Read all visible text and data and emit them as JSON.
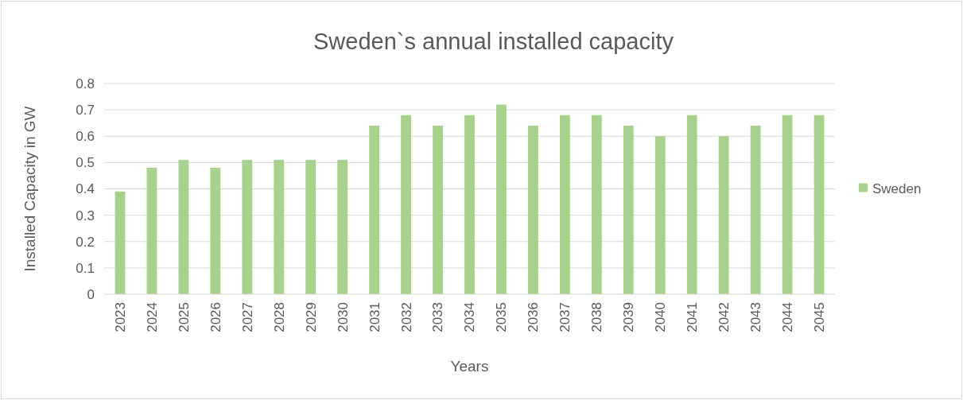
{
  "chart_data": {
    "type": "bar",
    "title": "Sweden`s annual installed capacity",
    "xlabel": "Years",
    "ylabel": "Installed Capacity in GW",
    "categories": [
      "2023",
      "2024",
      "2025",
      "2026",
      "2027",
      "2028",
      "2029",
      "2030",
      "2031",
      "2032",
      "2033",
      "2034",
      "2035",
      "2036",
      "2037",
      "2038",
      "2039",
      "2040",
      "2041",
      "2042",
      "2043",
      "2044",
      "2045"
    ],
    "series": [
      {
        "name": "Sweden",
        "color": "#a9d18e",
        "values": [
          0.39,
          0.48,
          0.51,
          0.48,
          0.51,
          0.51,
          0.51,
          0.51,
          0.64,
          0.68,
          0.64,
          0.68,
          0.72,
          0.64,
          0.68,
          0.68,
          0.64,
          0.6,
          0.68,
          0.6,
          0.64,
          0.68,
          0.68
        ]
      }
    ],
    "ylim": [
      0,
      0.8
    ],
    "yticks": [
      {
        "value": 0,
        "label": "0"
      },
      {
        "value": 0.1,
        "label": "0.1"
      },
      {
        "value": 0.2,
        "label": "0.2"
      },
      {
        "value": 0.3,
        "label": "0.3"
      },
      {
        "value": 0.4,
        "label": "0.4"
      },
      {
        "value": 0.5,
        "label": "0.5"
      },
      {
        "value": 0.6,
        "label": "0.6"
      },
      {
        "value": 0.7,
        "label": "0.7"
      },
      {
        "value": 0.8,
        "label": "0.8"
      }
    ],
    "grid": "y",
    "legend": "right"
  }
}
